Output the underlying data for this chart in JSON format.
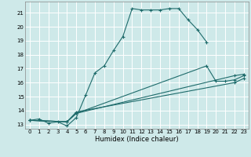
{
  "xlabel": "Humidex (Indice chaleur)",
  "bg_color": "#cee9e9",
  "grid_color": "#ffffff",
  "line_color": "#1e6b6b",
  "line1_x": [
    0,
    1,
    2,
    3,
    4,
    5,
    6,
    7,
    8,
    9,
    10,
    11,
    12,
    13,
    14,
    15,
    16,
    17,
    18,
    19
  ],
  "line1_y": [
    13.3,
    13.4,
    13.1,
    13.2,
    12.9,
    13.5,
    15.1,
    16.7,
    17.2,
    18.3,
    19.3,
    21.3,
    21.2,
    21.2,
    21.2,
    21.3,
    21.3,
    20.5,
    19.8,
    18.9
  ],
  "line2_x": [
    0,
    4,
    5,
    22,
    23
  ],
  "line2_y": [
    13.3,
    13.2,
    13.8,
    16.5,
    16.6
  ],
  "line3_x": [
    0,
    4,
    5,
    19,
    20,
    21,
    22,
    23
  ],
  "line3_y": [
    13.3,
    13.2,
    13.8,
    17.2,
    16.1,
    16.1,
    16.2,
    16.5
  ],
  "line4_x": [
    0,
    4,
    5,
    22,
    23
  ],
  "line4_y": [
    13.3,
    13.2,
    13.9,
    16.0,
    16.3
  ],
  "xlim": [
    -0.5,
    23.5
  ],
  "ylim": [
    12.7,
    21.8
  ],
  "xticks": [
    0,
    1,
    2,
    3,
    4,
    5,
    6,
    7,
    8,
    9,
    10,
    11,
    12,
    13,
    14,
    15,
    16,
    17,
    18,
    19,
    20,
    21,
    22,
    23
  ],
  "yticks": [
    13,
    14,
    15,
    16,
    17,
    18,
    19,
    20,
    21
  ],
  "xlabel_fontsize": 6,
  "tick_fontsize": 5
}
